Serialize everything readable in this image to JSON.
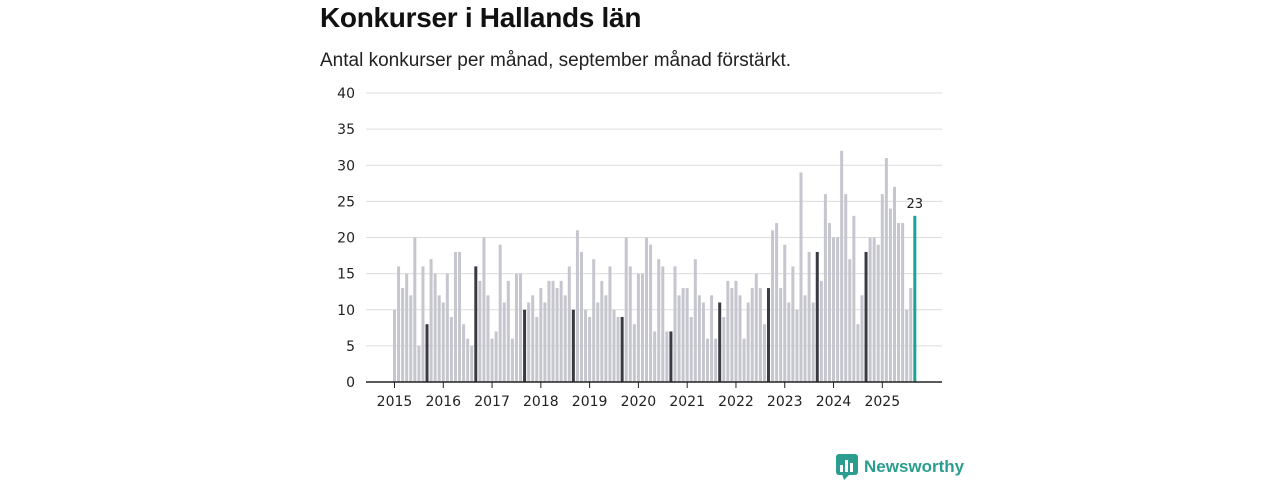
{
  "header": {
    "title": "Konkurser i Hallands län",
    "subtitle": "Antal konkurser per månad, september månad förstärkt."
  },
  "brand": {
    "name": "Newsworthy"
  },
  "colors": {
    "bar": "#c6c6ce",
    "highlight": "#3a3a42",
    "latest": "#1aa398",
    "grid": "#dcdcdc",
    "axis": "#222222",
    "brand": "#2a9d8f"
  },
  "chart_data": {
    "type": "bar",
    "title": "Konkurser i Hallands län",
    "subtitle": "Antal konkurser per månad, september månad förstärkt.",
    "ylim": [
      0,
      40
    ],
    "yticks": [
      0,
      5,
      10,
      15,
      20,
      25,
      30,
      35,
      40
    ],
    "year_labels": [
      "2015",
      "2016",
      "2017",
      "2018",
      "2019",
      "2020",
      "2021",
      "2022",
      "2023",
      "2024",
      "2025"
    ],
    "start": "2015-01",
    "highlight_month": 9,
    "latest_label": "23",
    "values": [
      10,
      16,
      13,
      15,
      12,
      20,
      5,
      16,
      8,
      17,
      15,
      12,
      11,
      15,
      9,
      18,
      18,
      8,
      6,
      5,
      16,
      14,
      20,
      12,
      6,
      7,
      19,
      11,
      14,
      6,
      15,
      15,
      10,
      11,
      12,
      9,
      13,
      11,
      14,
      14,
      13,
      14,
      12,
      16,
      10,
      21,
      18,
      10,
      9,
      17,
      11,
      14,
      12,
      16,
      10,
      9,
      9,
      20,
      16,
      8,
      15,
      15,
      20,
      19,
      7,
      17,
      16,
      7,
      7,
      16,
      12,
      13,
      13,
      9,
      17,
      12,
      11,
      6,
      12,
      6,
      11,
      9,
      14,
      13,
      14,
      12,
      6,
      11,
      13,
      15,
      13,
      8,
      13,
      21,
      22,
      13,
      19,
      11,
      16,
      10,
      29,
      12,
      18,
      11,
      18,
      14,
      26,
      22,
      20,
      20,
      32,
      26,
      17,
      23,
      8,
      12,
      18,
      20,
      20,
      19,
      26,
      31,
      24,
      27,
      22,
      22,
      10,
      13,
      23
    ]
  }
}
